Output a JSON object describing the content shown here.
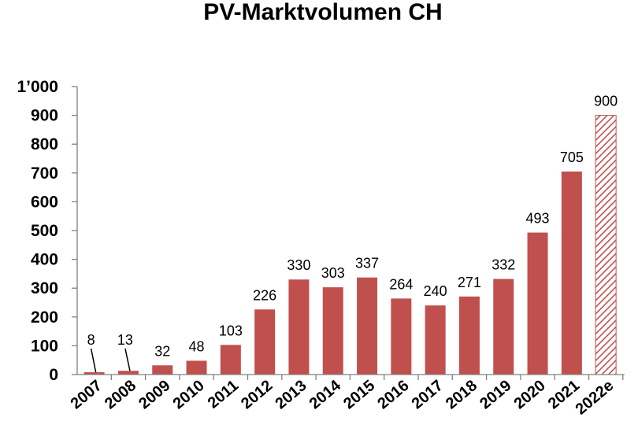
{
  "chart_data": {
    "type": "bar",
    "title": "PV-Marktvolumen CH",
    "categories": [
      "2007",
      "2008",
      "2009",
      "2010",
      "2011",
      "2012",
      "2013",
      "2014",
      "2015",
      "2016",
      "2017",
      "2018",
      "2019",
      "2020",
      "2021",
      "2022e"
    ],
    "values": [
      8,
      13,
      32,
      48,
      103,
      226,
      330,
      303,
      337,
      264,
      240,
      271,
      332,
      493,
      705,
      900
    ],
    "estimated": [
      false,
      false,
      false,
      false,
      false,
      false,
      false,
      false,
      false,
      false,
      false,
      false,
      false,
      false,
      false,
      true
    ],
    "ylim": [
      0,
      1000
    ],
    "yticks": [
      0,
      100,
      200,
      300,
      400,
      500,
      600,
      700,
      800,
      900,
      1000
    ],
    "ytick_labels": [
      "0",
      "100",
      "200",
      "300",
      "400",
      "500",
      "600",
      "700",
      "800",
      "900",
      "1’000"
    ],
    "xlabel": "",
    "ylabel": "",
    "grid": false,
    "legend": "none",
    "bar_color": "#c0504d",
    "label_leader_lines": [
      true,
      true,
      false,
      false,
      false,
      false,
      false,
      false,
      false,
      false,
      false,
      false,
      false,
      false,
      false,
      false
    ]
  }
}
